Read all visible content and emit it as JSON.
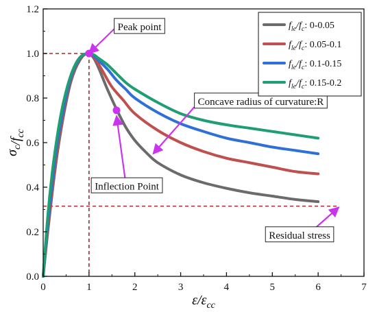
{
  "chart_data": {
    "type": "line",
    "xlabel": "ε/ε_cc",
    "ylabel": "σ_c/f_cc",
    "xlim": [
      0,
      7
    ],
    "ylim": [
      0,
      1.2
    ],
    "x_ticks": [
      0,
      1,
      2,
      3,
      4,
      5,
      6,
      7
    ],
    "y_ticks": [
      0.0,
      0.2,
      0.4,
      0.6,
      0.8,
      1.0,
      1.2
    ],
    "x_tick_labels": [
      "0",
      "1",
      "2",
      "3",
      "4",
      "5",
      "6",
      "7"
    ],
    "y_tick_labels": [
      "0.0",
      "0.2",
      "0.4",
      "0.6",
      "0.8",
      "1.0",
      "1.2"
    ],
    "grid": false,
    "legend_position": "top-right",
    "legend_prefix_sub1": "le",
    "legend_prefix_sub2": "c",
    "series": [
      {
        "name": "0-0.05",
        "color": "#6b6b6b",
        "points": [
          [
            0,
            0
          ],
          [
            0.1,
            0.2
          ],
          [
            0.2,
            0.38
          ],
          [
            0.3,
            0.54
          ],
          [
            0.4,
            0.67
          ],
          [
            0.5,
            0.78
          ],
          [
            0.6,
            0.87
          ],
          [
            0.7,
            0.93
          ],
          [
            0.8,
            0.97
          ],
          [
            0.9,
            0.995
          ],
          [
            1.0,
            1.0
          ],
          [
            1.1,
            0.98
          ],
          [
            1.2,
            0.94
          ],
          [
            1.3,
            0.89
          ],
          [
            1.4,
            0.84
          ],
          [
            1.6,
            0.75
          ],
          [
            1.8,
            0.67
          ],
          [
            2.0,
            0.61
          ],
          [
            2.25,
            0.555
          ],
          [
            2.5,
            0.51
          ],
          [
            3.0,
            0.455
          ],
          [
            3.5,
            0.42
          ],
          [
            4.0,
            0.395
          ],
          [
            4.5,
            0.375
          ],
          [
            5.0,
            0.36
          ],
          [
            5.5,
            0.345
          ],
          [
            6.0,
            0.335
          ]
        ]
      },
      {
        "name": "0.05-0.1",
        "color": "#c0504d",
        "points": [
          [
            0,
            0
          ],
          [
            0.1,
            0.22
          ],
          [
            0.2,
            0.4
          ],
          [
            0.3,
            0.56
          ],
          [
            0.4,
            0.69
          ],
          [
            0.5,
            0.8
          ],
          [
            0.6,
            0.88
          ],
          [
            0.7,
            0.94
          ],
          [
            0.8,
            0.975
          ],
          [
            0.9,
            0.995
          ],
          [
            1.0,
            1.0
          ],
          [
            1.1,
            0.985
          ],
          [
            1.2,
            0.955
          ],
          [
            1.3,
            0.92
          ],
          [
            1.5,
            0.85
          ],
          [
            1.75,
            0.79
          ],
          [
            2.0,
            0.73
          ],
          [
            2.5,
            0.655
          ],
          [
            3.0,
            0.6
          ],
          [
            3.5,
            0.56
          ],
          [
            4.0,
            0.53
          ],
          [
            4.5,
            0.51
          ],
          [
            5.0,
            0.49
          ],
          [
            5.5,
            0.47
          ],
          [
            6.0,
            0.46
          ]
        ]
      },
      {
        "name": "0.1-0.15",
        "color": "#2e6fd8",
        "points": [
          [
            0,
            0
          ],
          [
            0.1,
            0.24
          ],
          [
            0.2,
            0.43
          ],
          [
            0.3,
            0.59
          ],
          [
            0.4,
            0.71
          ],
          [
            0.5,
            0.81
          ],
          [
            0.6,
            0.89
          ],
          [
            0.7,
            0.945
          ],
          [
            0.8,
            0.978
          ],
          [
            0.9,
            0.996
          ],
          [
            1.0,
            1.0
          ],
          [
            1.1,
            0.99
          ],
          [
            1.2,
            0.97
          ],
          [
            1.4,
            0.93
          ],
          [
            1.6,
            0.88
          ],
          [
            1.8,
            0.84
          ],
          [
            2.0,
            0.8
          ],
          [
            2.5,
            0.735
          ],
          [
            3.0,
            0.685
          ],
          [
            3.5,
            0.65
          ],
          [
            4.0,
            0.62
          ],
          [
            4.5,
            0.6
          ],
          [
            5.0,
            0.58
          ],
          [
            5.5,
            0.565
          ],
          [
            6.0,
            0.55
          ]
        ]
      },
      {
        "name": "0.15-0.2",
        "color": "#1f9e74",
        "points": [
          [
            0,
            0
          ],
          [
            0.1,
            0.27
          ],
          [
            0.2,
            0.47
          ],
          [
            0.3,
            0.62
          ],
          [
            0.4,
            0.74
          ],
          [
            0.5,
            0.83
          ],
          [
            0.6,
            0.9
          ],
          [
            0.7,
            0.95
          ],
          [
            0.8,
            0.982
          ],
          [
            0.9,
            0.997
          ],
          [
            1.0,
            1.0
          ],
          [
            1.1,
            0.995
          ],
          [
            1.2,
            0.98
          ],
          [
            1.4,
            0.95
          ],
          [
            1.6,
            0.91
          ],
          [
            1.8,
            0.87
          ],
          [
            2.0,
            0.84
          ],
          [
            2.5,
            0.78
          ],
          [
            3.0,
            0.73
          ],
          [
            3.5,
            0.7
          ],
          [
            4.0,
            0.68
          ],
          [
            4.5,
            0.665
          ],
          [
            5.0,
            0.65
          ],
          [
            5.5,
            0.635
          ],
          [
            6.0,
            0.62
          ]
        ]
      }
    ],
    "markers": [
      {
        "name": "peak-point-marker",
        "x": 1.0,
        "y": 1.0,
        "color": "#cc33ee"
      },
      {
        "name": "inflection-point-marker",
        "x": 1.6,
        "y": 0.745,
        "color": "#cc33ee"
      }
    ],
    "reference_lines": {
      "color": "#a52a2a",
      "peak_y": 1.0,
      "peak_x": 1.0,
      "residual_y": 0.315,
      "residual_x_end": 6.45
    },
    "annotations": [
      {
        "text": "Peak point",
        "box_x": 1.55,
        "box_y": 1.105,
        "arrow_from": [
          1.6,
          1.12
        ],
        "arrow_to": [
          1.0,
          1.0
        ]
      },
      {
        "text": "Concave radius of curvature:R",
        "box_x": 3.3,
        "box_y": 0.77,
        "arrow_from": [
          3.3,
          0.76
        ],
        "arrow_to": [
          2.4,
          0.55
        ]
      },
      {
        "text": "Inflection Point",
        "box_x": 1.05,
        "box_y": 0.39,
        "arrow_from": [
          1.8,
          0.42
        ],
        "arrow_to": [
          1.6,
          0.72
        ]
      },
      {
        "text": "Residual stress",
        "box_x": 4.85,
        "box_y": 0.17,
        "arrow_from": [
          5.9,
          0.21
        ],
        "arrow_to": [
          6.45,
          0.31
        ]
      }
    ],
    "annotation_color": "#cc33ee"
  }
}
